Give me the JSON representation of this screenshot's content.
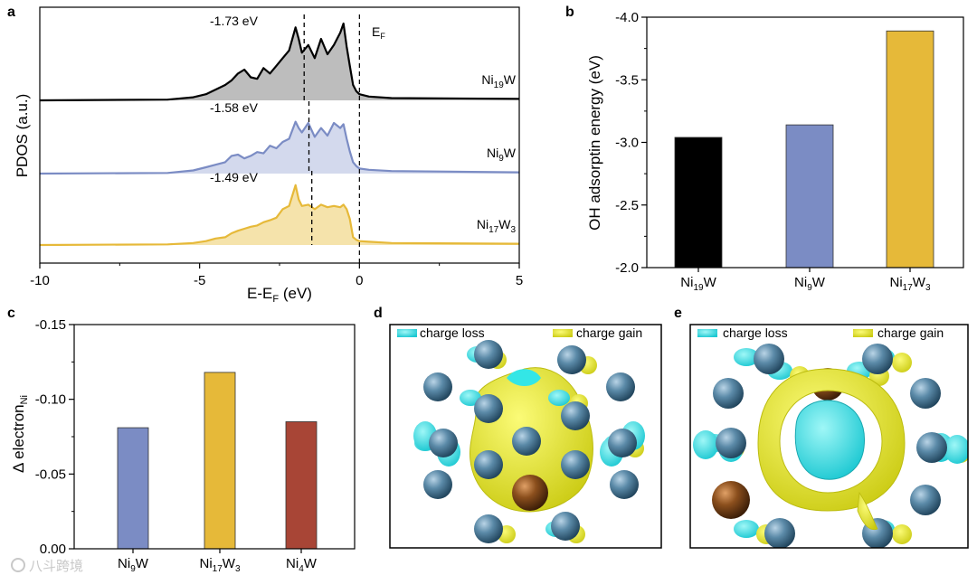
{
  "panels": {
    "a": {
      "letter": "a",
      "chart_data": {
        "type": "area",
        "xlabel": {
          "base": "E-E",
          "sub": "F",
          "unit": " (eV)"
        },
        "ylabel": "PDOS (a.u.)",
        "xlim": [
          -10,
          5
        ],
        "xticks": [
          -10,
          -5,
          0,
          5
        ],
        "fermi_label": {
          "base": "E",
          "sub": "F"
        },
        "series": [
          {
            "name": [
              {
                "t": "Ni"
              },
              {
                "t": "19",
                "sub": true
              },
              {
                "t": "W"
              }
            ],
            "line_color": "#000000",
            "fill_color": "#bdbdbd",
            "d_band_center": -1.73,
            "d_band_label": "-1.73 eV",
            "x": [
              -10,
              -6,
              -5.2,
              -4.8,
              -4.5,
              -4.2,
              -4.0,
              -3.8,
              -3.6,
              -3.4,
              -3.2,
              -3.0,
              -2.8,
              -2.6,
              -2.4,
              -2.2,
              -2.0,
              -1.9,
              -1.8,
              -1.6,
              -1.4,
              -1.2,
              -1.0,
              -0.8,
              -0.6,
              -0.5,
              -0.4,
              -0.3,
              -0.2,
              -0.1,
              0.0,
              0.3,
              1.0,
              5
            ],
            "y": [
              0,
              0.01,
              0.04,
              0.08,
              0.14,
              0.2,
              0.26,
              0.35,
              0.4,
              0.3,
              0.28,
              0.42,
              0.35,
              0.45,
              0.55,
              0.65,
              0.95,
              0.8,
              0.62,
              0.72,
              0.55,
              0.8,
              0.6,
              0.72,
              0.88,
              1.0,
              0.7,
              0.45,
              0.2,
              0.12,
              0.08,
              0.05,
              0.03,
              0.02
            ]
          },
          {
            "name": [
              {
                "t": "Ni"
              },
              {
                "t": "9",
                "sub": true
              },
              {
                "t": "W"
              }
            ],
            "line_color": "#7b8cc4",
            "fill_color": "#d3d9ed",
            "d_band_center": -1.58,
            "d_band_label": "-1.58 eV",
            "x": [
              -10,
              -6,
              -5.2,
              -4.8,
              -4.5,
              -4.2,
              -4.0,
              -3.8,
              -3.6,
              -3.4,
              -3.2,
              -3.0,
              -2.8,
              -2.6,
              -2.4,
              -2.2,
              -2.0,
              -1.9,
              -1.8,
              -1.6,
              -1.4,
              -1.2,
              -1.0,
              -0.8,
              -0.6,
              -0.5,
              -0.4,
              -0.3,
              -0.2,
              -0.1,
              0.0,
              0.3,
              1.0,
              5
            ],
            "y": [
              0,
              0.01,
              0.05,
              0.1,
              0.14,
              0.18,
              0.28,
              0.3,
              0.24,
              0.28,
              0.34,
              0.32,
              0.44,
              0.4,
              0.5,
              0.55,
              0.82,
              0.72,
              0.65,
              0.8,
              0.58,
              0.72,
              0.6,
              0.8,
              0.72,
              0.78,
              0.55,
              0.35,
              0.18,
              0.12,
              0.08,
              0.06,
              0.04,
              0.02
            ]
          },
          {
            "name": [
              {
                "t": "Ni"
              },
              {
                "t": "17",
                "sub": true
              },
              {
                "t": "W"
              },
              {
                "t": "3",
                "sub": true
              }
            ],
            "line_color": "#e6b939",
            "fill_color": "#f5e3ab",
            "d_band_center": -1.49,
            "d_band_label": "-1.49 eV",
            "x": [
              -10,
              -6,
              -5.2,
              -4.8,
              -4.5,
              -4.2,
              -4.0,
              -3.8,
              -3.6,
              -3.4,
              -3.2,
              -3.0,
              -2.8,
              -2.6,
              -2.4,
              -2.2,
              -2.0,
              -1.9,
              -1.8,
              -1.6,
              -1.4,
              -1.2,
              -1.0,
              -0.8,
              -0.6,
              -0.5,
              -0.4,
              -0.3,
              -0.2,
              -0.1,
              0.0,
              0.3,
              1.0,
              5
            ],
            "y": [
              0,
              0.01,
              0.03,
              0.06,
              0.1,
              0.12,
              0.18,
              0.22,
              0.25,
              0.28,
              0.3,
              0.35,
              0.38,
              0.42,
              0.55,
              0.6,
              0.92,
              0.7,
              0.6,
              0.62,
              0.55,
              0.62,
              0.58,
              0.6,
              0.58,
              0.62,
              0.55,
              0.4,
              0.12,
              0.08,
              0.06,
              0.05,
              0.03,
              0.02
            ]
          }
        ]
      }
    },
    "b": {
      "letter": "b",
      "chart_data": {
        "type": "bar",
        "ylabel": "OH adsorptin energy (eV)",
        "ylim": [
          -2.0,
          -4.0
        ],
        "yticks": [
          -2.0,
          -2.5,
          -3.0,
          -3.5,
          -4.0
        ],
        "tick_labels": [
          "-2.0",
          "-2.5",
          "-3.0",
          "-3.5",
          "-4.0"
        ],
        "categories": [
          [
            {
              "t": "Ni"
            },
            {
              "t": "19",
              "sub": true
            },
            {
              "t": "W"
            }
          ],
          [
            {
              "t": "Ni"
            },
            {
              "t": "9",
              "sub": true
            },
            {
              "t": "W"
            }
          ],
          [
            {
              "t": "Ni"
            },
            {
              "t": "17",
              "sub": true
            },
            {
              "t": "W"
            },
            {
              "t": "3",
              "sub": true
            }
          ]
        ],
        "values": [
          -3.04,
          -3.14,
          -3.89
        ],
        "colors": [
          "#000000",
          "#7b8cc4",
          "#e6b939"
        ]
      }
    },
    "c": {
      "letter": "c",
      "chart_data": {
        "type": "bar",
        "ylabel": {
          "base": "Δ electron",
          "sub": "Ni"
        },
        "ylim": [
          0.0,
          -0.15
        ],
        "yticks": [
          0.0,
          -0.05,
          -0.1,
          -0.15
        ],
        "tick_labels": [
          "0.00",
          "-0.05",
          "-0.10",
          "-0.15"
        ],
        "categories": [
          [
            {
              "t": "Ni"
            },
            {
              "t": "9",
              "sub": true
            },
            {
              "t": "W"
            }
          ],
          [
            {
              "t": "Ni"
            },
            {
              "t": "17",
              "sub": true
            },
            {
              "t": "W"
            },
            {
              "t": "3",
              "sub": true
            }
          ],
          [
            {
              "t": "Ni"
            },
            {
              "t": "4",
              "sub": true
            },
            {
              "t": "W"
            }
          ]
        ],
        "values": [
          -0.081,
          -0.118,
          -0.085
        ],
        "colors": [
          "#7b8cc4",
          "#e6b939",
          "#a84536"
        ]
      }
    },
    "d": {
      "letter": "d",
      "legend": {
        "loss": "charge loss",
        "gain": "charge gain"
      },
      "colors": {
        "loss": "#33e6e6",
        "gain": "#eeee22",
        "ni_atom": "#5a8aa6",
        "w_atom": "#8a4e1c"
      }
    },
    "e": {
      "letter": "e",
      "legend": {
        "loss": "charge loss",
        "gain": "charge gain"
      },
      "colors": {
        "loss": "#33e6e6",
        "gain": "#eeee22",
        "ni_atom": "#5a8aa6",
        "w_atom": "#8a4e1c"
      }
    }
  },
  "watermark": "八斗跨境"
}
